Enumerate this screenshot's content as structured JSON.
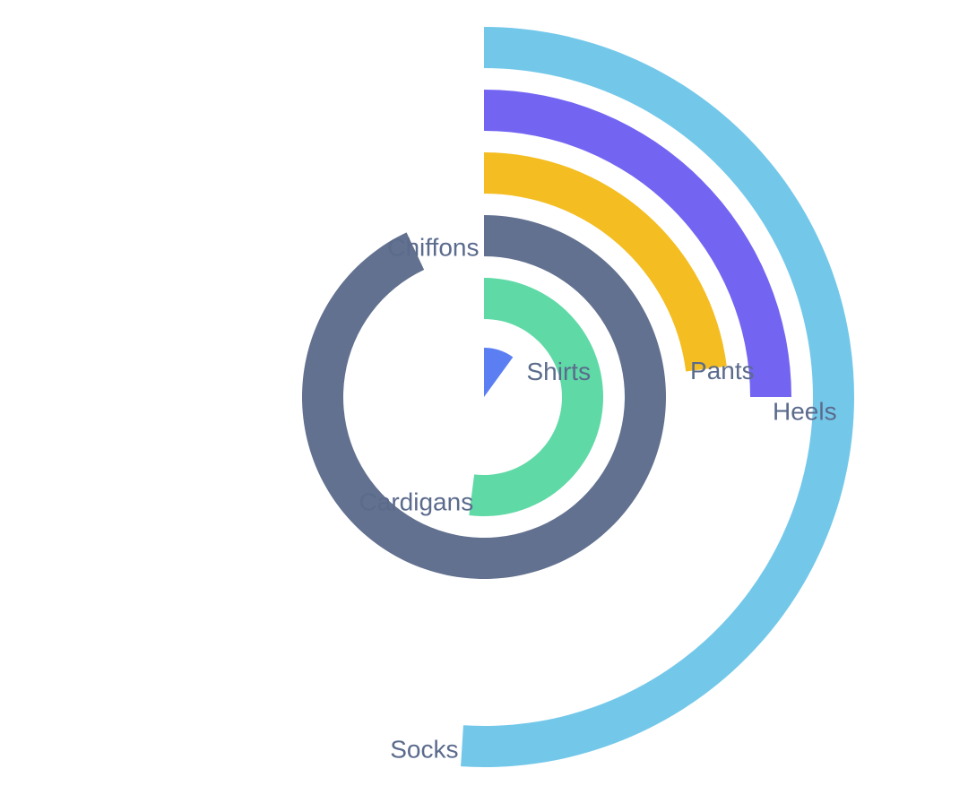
{
  "chart_data": {
    "type": "radial-bar",
    "title": "",
    "categories": [
      "Shirts",
      "Cardigans",
      "Chiffons",
      "Pants",
      "Heels",
      "Socks"
    ],
    "values": [
      10,
      52,
      93,
      23,
      25,
      51
    ],
    "max_value": 100,
    "series": [
      {
        "name": "",
        "values": [
          10,
          52,
          93,
          23,
          25,
          51
        ]
      }
    ],
    "colors": [
      "#5b7ff2",
      "#5fd9a6",
      "#62718f",
      "#f4bd22",
      "#7365f2",
      "#73c8ea"
    ],
    "legend": "none",
    "grid": false
  }
}
